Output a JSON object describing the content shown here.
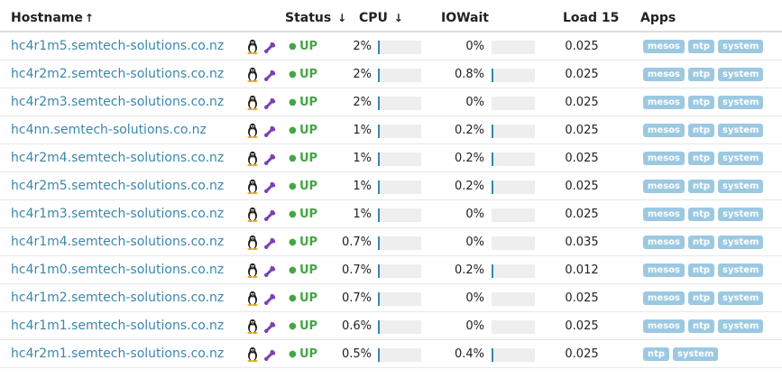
{
  "headers": {
    "hostname": "Hostname",
    "hostname_arrow": "↑",
    "status": "Status",
    "status_arrow": "↓",
    "cpu": "CPU",
    "cpu_arrow": "↓",
    "iowait": "IOWait",
    "load": "Load 15",
    "apps": "Apps"
  },
  "colors": {
    "link": "#3a87ad",
    "status_up": "#46a546",
    "bar_fill": "#3a87ad",
    "bar_track": "#eeeeee",
    "app_label": "#9cc9e1",
    "tool_icon": "#7b3fb5"
  },
  "icons": {
    "os": "linux-tux-icon",
    "tool": "wrench-icon",
    "status": "status-dot-icon"
  },
  "hosts": [
    {
      "hostname": "hc4r1m5.semtech-solutions.co.nz",
      "status": "UP",
      "cpu": "2%",
      "cpu_pct": 2,
      "iowait": "0%",
      "iowait_pct": 0,
      "load": "0.025",
      "apps": [
        "mesos",
        "ntp",
        "system"
      ]
    },
    {
      "hostname": "hc4r2m2.semtech-solutions.co.nz",
      "status": "UP",
      "cpu": "2%",
      "cpu_pct": 2,
      "iowait": "0.8%",
      "iowait_pct": 0.8,
      "load": "0.025",
      "apps": [
        "mesos",
        "ntp",
        "system"
      ]
    },
    {
      "hostname": "hc4r2m3.semtech-solutions.co.nz",
      "status": "UP",
      "cpu": "2%",
      "cpu_pct": 2,
      "iowait": "0%",
      "iowait_pct": 0,
      "load": "0.025",
      "apps": [
        "mesos",
        "ntp",
        "system"
      ]
    },
    {
      "hostname": "hc4nn.semtech-solutions.co.nz",
      "status": "UP",
      "cpu": "1%",
      "cpu_pct": 1,
      "iowait": "0.2%",
      "iowait_pct": 0.2,
      "load": "0.025",
      "apps": [
        "mesos",
        "ntp",
        "system"
      ]
    },
    {
      "hostname": "hc4r2m4.semtech-solutions.co.nz",
      "status": "UP",
      "cpu": "1%",
      "cpu_pct": 1,
      "iowait": "0.2%",
      "iowait_pct": 0.2,
      "load": "0.025",
      "apps": [
        "mesos",
        "ntp",
        "system"
      ]
    },
    {
      "hostname": "hc4r2m5.semtech-solutions.co.nz",
      "status": "UP",
      "cpu": "1%",
      "cpu_pct": 1,
      "iowait": "0.2%",
      "iowait_pct": 0.2,
      "load": "0.025",
      "apps": [
        "mesos",
        "ntp",
        "system"
      ]
    },
    {
      "hostname": "hc4r1m3.semtech-solutions.co.nz",
      "status": "UP",
      "cpu": "1%",
      "cpu_pct": 1,
      "iowait": "0%",
      "iowait_pct": 0,
      "load": "0.025",
      "apps": [
        "mesos",
        "ntp",
        "system"
      ]
    },
    {
      "hostname": "hc4r1m4.semtech-solutions.co.nz",
      "status": "UP",
      "cpu": "0.7%",
      "cpu_pct": 0.7,
      "iowait": "0%",
      "iowait_pct": 0,
      "load": "0.035",
      "apps": [
        "mesos",
        "ntp",
        "system"
      ]
    },
    {
      "hostname": "hc4r1m0.semtech-solutions.co.nz",
      "status": "UP",
      "cpu": "0.7%",
      "cpu_pct": 0.7,
      "iowait": "0.2%",
      "iowait_pct": 0.2,
      "load": "0.012",
      "apps": [
        "mesos",
        "ntp",
        "system"
      ]
    },
    {
      "hostname": "hc4r1m2.semtech-solutions.co.nz",
      "status": "UP",
      "cpu": "0.7%",
      "cpu_pct": 0.7,
      "iowait": "0%",
      "iowait_pct": 0,
      "load": "0.025",
      "apps": [
        "mesos",
        "ntp",
        "system"
      ]
    },
    {
      "hostname": "hc4r1m1.semtech-solutions.co.nz",
      "status": "UP",
      "cpu": "0.6%",
      "cpu_pct": 0.6,
      "iowait": "0%",
      "iowait_pct": 0,
      "load": "0.025",
      "apps": [
        "mesos",
        "ntp",
        "system"
      ]
    },
    {
      "hostname": "hc4r2m1.semtech-solutions.co.nz",
      "status": "UP",
      "cpu": "0.5%",
      "cpu_pct": 0.5,
      "iowait": "0.4%",
      "iowait_pct": 0.4,
      "load": "0.025",
      "apps": [
        "ntp",
        "system"
      ]
    }
  ]
}
